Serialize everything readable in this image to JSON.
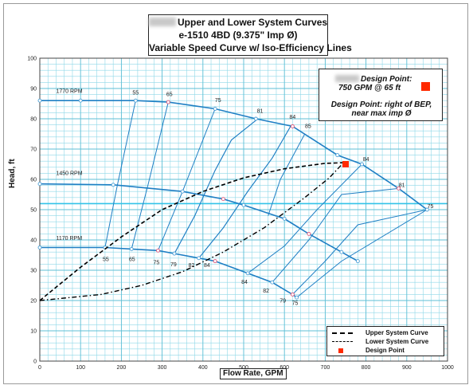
{
  "title": {
    "line1": "Upper and Lower System Curves",
    "line2": "e-1510 4BD (9.375\" Imp Ø)",
    "line3": "Variable Speed Curve w/ Iso-Efficiency Lines"
  },
  "design_point_box": {
    "line1": "Design Point:",
    "line2": "750 GPM @ 65 ft",
    "line3": "Design Point: right of BEP, near max imp Ø",
    "marker_color": "#ff2a00"
  },
  "legend": {
    "upper": "Upper System Curve",
    "lower": "Lower System Curve",
    "design": "Design Point"
  },
  "chart_data": {
    "type": "line",
    "xlabel": "Flow Rate, GPM",
    "ylabel": "Head, ft",
    "xlim": [
      0,
      1000
    ],
    "ylim": [
      0,
      100
    ],
    "x_ticks": [
      0,
      100,
      200,
      300,
      400,
      500,
      600,
      700,
      800,
      900,
      1000
    ],
    "y_ticks": [
      0,
      10,
      20,
      30,
      40,
      50,
      60,
      70,
      80,
      90,
      100
    ],
    "grid": true,
    "legend_position": "bottom-right",
    "colors": {
      "speed": "#1f7fc4",
      "grid": "#8fd8e8",
      "system": "#000000",
      "design": "#ff2a00"
    },
    "speed_curves": [
      {
        "name": "1770 RPM",
        "label_at": [
          40,
          88.5
        ],
        "points": [
          [
            0,
            86
          ],
          [
            100,
            86
          ],
          [
            235,
            86
          ],
          [
            315,
            85.5
          ],
          [
            430,
            83.3
          ],
          [
            530,
            80
          ],
          [
            620,
            77.5
          ],
          [
            730,
            68
          ],
          [
            790,
            65
          ],
          [
            880,
            57
          ],
          [
            950,
            50
          ]
        ]
      },
      {
        "name": "1450 RPM",
        "label_at": [
          40,
          61.5
        ],
        "points": [
          [
            0,
            58.5
          ],
          [
            180,
            58.2
          ],
          [
            350,
            56
          ],
          [
            450,
            53.5
          ],
          [
            500,
            51.5
          ],
          [
            600,
            47
          ],
          [
            660,
            42
          ],
          [
            740,
            36
          ],
          [
            780,
            33
          ]
        ]
      },
      {
        "name": "1170 RPM",
        "label_at": [
          40,
          40
        ],
        "points": [
          [
            0,
            37.5
          ],
          [
            160,
            37.5
          ],
          [
            225,
            37
          ],
          [
            290,
            36.5
          ],
          [
            330,
            35.5
          ],
          [
            390,
            34
          ],
          [
            430,
            33
          ],
          [
            510,
            29
          ],
          [
            570,
            26
          ],
          [
            620,
            22
          ],
          [
            630,
            21
          ]
        ]
      }
    ],
    "iso_efficiency_lines": [
      {
        "label": "55",
        "label_at": [
          235,
          88
        ],
        "label_low_at": [
          162,
          33
        ],
        "points": [
          [
            160,
            37.5
          ],
          [
            190,
            58
          ],
          [
            235,
            86
          ]
        ]
      },
      {
        "label": "65",
        "label_at": [
          318,
          87.5
        ],
        "label_low_at": [
          226,
          33
        ],
        "points": [
          [
            225,
            37
          ],
          [
            265,
            58
          ],
          [
            315,
            85.5
          ]
        ]
      },
      {
        "label": "75",
        "label_at": [
          437,
          85.5
        ],
        "label_low_at": [
          286,
          32
        ],
        "points": [
          [
            290,
            36.5
          ],
          [
            350,
            56
          ],
          [
            430,
            83.3
          ]
        ]
      },
      {
        "label": "79",
        "label_at": [
          0,
          0
        ],
        "label_low_at": [
          328,
          31.3
        ],
        "points": [
          [
            330,
            35.5
          ],
          [
            380,
            48
          ],
          [
            430,
            63
          ],
          [
            470,
            73
          ],
          [
            535,
            80
          ]
        ]
      },
      {
        "label": "81",
        "label_at": [
          540,
          82
        ],
        "label_low_at": [
          0,
          0
        ],
        "points": [
          [
            330,
            35.5
          ],
          [
            380,
            48
          ],
          [
            430,
            63
          ],
          [
            470,
            73
          ],
          [
            535,
            80
          ]
        ]
      },
      {
        "label": "82",
        "label_at": [
          0,
          0
        ],
        "label_low_at": [
          372,
          31
        ],
        "points": [
          [
            390,
            34
          ],
          [
            450,
            44
          ],
          [
            510,
            56
          ],
          [
            570,
            67
          ],
          [
            615,
            77.5
          ]
        ]
      },
      {
        "label": "84",
        "label_at": [
          620,
          80
        ],
        "label_low_at": [
          410,
          31
        ],
        "points": [
          [
            390,
            34
          ],
          [
            450,
            44
          ],
          [
            510,
            56
          ],
          [
            570,
            67
          ],
          [
            615,
            77.5
          ]
        ]
      },
      {
        "label": "85",
        "label_at": [
          658,
          77
        ],
        "label_low_at": [
          0,
          0
        ],
        "points": [
          [
            560,
            48
          ],
          [
            590,
            60
          ],
          [
            650,
            75
          ]
        ]
      },
      {
        "label": "84",
        "label_at": [
          0,
          0
        ],
        "label_low_at": [
          502,
          25.5
        ],
        "points": [
          [
            510,
            29
          ],
          [
            600,
            38
          ],
          [
            680,
            50
          ],
          [
            790,
            65
          ]
        ]
      },
      {
        "label": "82",
        "label_at": [
          0,
          0
        ],
        "label_low_at": [
          555,
          22.6
        ],
        "points": [
          [
            570,
            26
          ],
          [
            660,
            40
          ],
          [
            740,
            55
          ],
          [
            880,
            57
          ]
        ]
      },
      {
        "label": "79",
        "label_at": [
          0,
          0
        ],
        "label_low_at": [
          596,
          19.4
        ],
        "points": [
          [
            620,
            22
          ],
          [
            700,
            33
          ],
          [
            780,
            45
          ],
          [
            950,
            50
          ]
        ]
      },
      {
        "label": "75",
        "label_at": [
          0,
          0
        ],
        "label_low_at": [
          626,
          18.6
        ],
        "points": [
          [
            630,
            21
          ],
          [
            740,
            33
          ],
          [
            950,
            50
          ]
        ]
      }
    ],
    "iso_top_labels": [
      {
        "label": "84",
        "label_at": [
          800,
          66
        ]
      },
      {
        "label": "81",
        "label_at": [
          888,
          57.5
        ]
      },
      {
        "label": "75",
        "label_at": [
          958,
          50.5
        ]
      }
    ],
    "upper_system_curve": {
      "name": "Upper System Curve",
      "points": [
        [
          0,
          20
        ],
        [
          100,
          31
        ],
        [
          200,
          41
        ],
        [
          300,
          50
        ],
        [
          400,
          56
        ],
        [
          500,
          60.5
        ],
        [
          600,
          63.5
        ],
        [
          700,
          65.3
        ],
        [
          745,
          65.5
        ]
      ]
    },
    "lower_system_curve": {
      "name": "Lower System Curve",
      "points": [
        [
          0,
          20
        ],
        [
          150,
          22
        ],
        [
          250,
          25
        ],
        [
          350,
          29.5
        ],
        [
          450,
          36
        ],
        [
          550,
          44
        ],
        [
          650,
          54
        ],
        [
          710,
          60.5
        ],
        [
          745,
          65.5
        ]
      ]
    },
    "design_point": {
      "name": "Design Point",
      "x": 750,
      "y": 65
    }
  }
}
